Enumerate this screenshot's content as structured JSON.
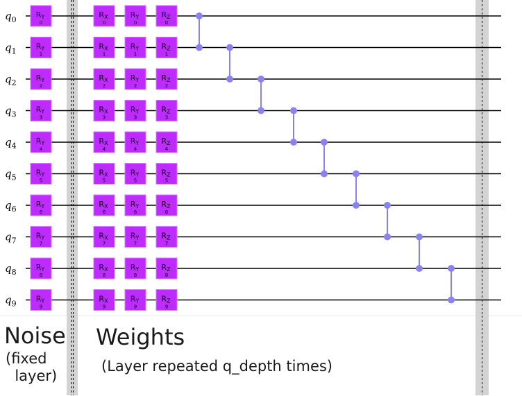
{
  "qubits": [
    {
      "label": "q",
      "index": "0"
    },
    {
      "label": "q",
      "index": "1"
    },
    {
      "label": "q",
      "index": "2"
    },
    {
      "label": "q",
      "index": "3"
    },
    {
      "label": "q",
      "index": "4"
    },
    {
      "label": "q",
      "index": "5"
    },
    {
      "label": "q",
      "index": "6"
    },
    {
      "label": "q",
      "index": "7"
    },
    {
      "label": "q",
      "index": "8"
    },
    {
      "label": "q",
      "index": "9"
    }
  ],
  "gate_columns": [
    {
      "name": "noise-ry",
      "main": "R",
      "sub": "Y"
    },
    {
      "name": "weights-rx",
      "main": "R",
      "sub": "X"
    },
    {
      "name": "weights-ry",
      "main": "R",
      "sub": "Y"
    },
    {
      "name": "weights-rz",
      "main": "R",
      "sub": "Z"
    }
  ],
  "cz_pairs": [
    [
      0,
      1
    ],
    [
      1,
      2
    ],
    [
      2,
      3
    ],
    [
      3,
      4
    ],
    [
      4,
      5
    ],
    [
      5,
      6
    ],
    [
      6,
      7
    ],
    [
      7,
      8
    ],
    [
      8,
      9
    ]
  ],
  "colors": {
    "gate_fill": "#bd2bff",
    "gate_edge": "#cf7bff",
    "gate_text": "#000000",
    "cz": "#8a82f2",
    "barrier": "#d3d3d3",
    "wire": "#000000"
  },
  "captions": {
    "noise_title": "Noise",
    "noise_sub": "(fixed\n  layer)",
    "weights_title": "Weights",
    "weights_sub": "(Layer repeated q_depth times)"
  }
}
